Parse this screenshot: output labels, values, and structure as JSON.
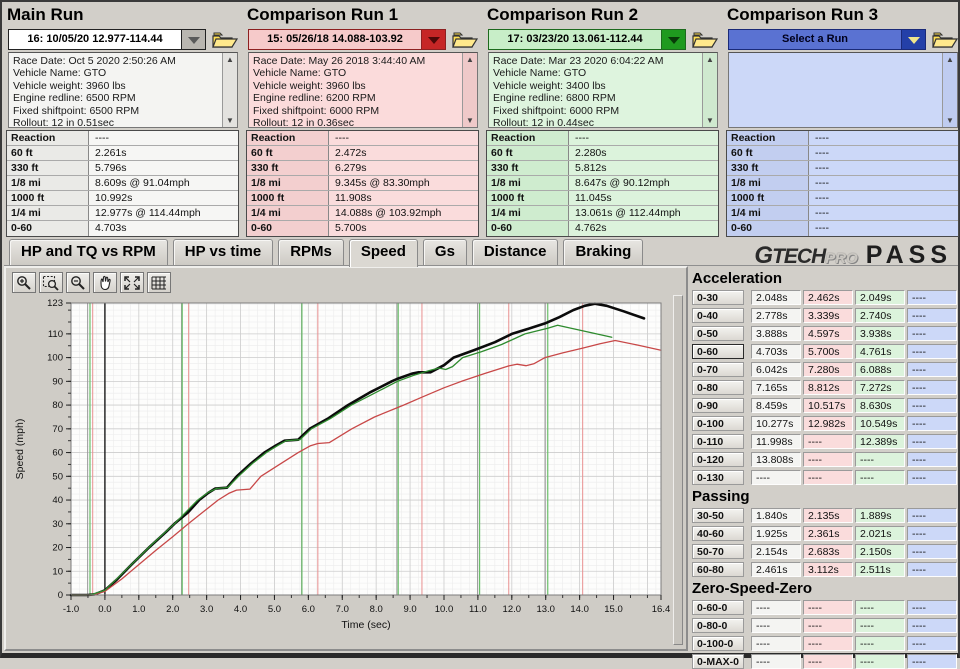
{
  "runs": [
    {
      "title": "Main Run",
      "selector": "16:   10/05/20 12.977-114.44",
      "info_lines": [
        "Race Date: Oct 5 2020  2:50:26 AM",
        "Vehicle Name: GTO",
        "Vehicle weight: 3960 lbs",
        "Engine redline: 6500 RPM",
        "Fixed shiftpoint: 6500 RPM",
        "Rollout: 12 in  0.51sec"
      ],
      "stats": [
        [
          "Reaction",
          "----"
        ],
        [
          "60 ft",
          "2.261s"
        ],
        [
          "330 ft",
          "5.796s"
        ],
        [
          "1/8 mi",
          "8.609s @ 91.04mph"
        ],
        [
          "1000 ft",
          "10.992s"
        ],
        [
          "1/4 mi",
          "12.977s @ 114.44mph"
        ],
        [
          "0-60",
          "4.703s"
        ]
      ],
      "theme": {
        "sel_bg": "#ffffff",
        "sel_text": "#000000",
        "sel_border": "#222222",
        "arrow_bg": "#b9b6b0",
        "arrow_tri": "#5a5a5a",
        "box_bg": "#f4f4f2",
        "sb_bg": "#e3e2df",
        "cell_bg": "#f6f6f4",
        "label_bg": "#eaeae7"
      }
    },
    {
      "title": "Comparison Run 1",
      "selector": "15:   05/26/18 14.088-103.92",
      "info_lines": [
        "Race Date: May 26 2018  3:44:40 AM",
        "Vehicle Name: GTO",
        "Vehicle weight: 3960 lbs",
        "Engine redline: 6200 RPM",
        "Fixed shiftpoint: 6000 RPM",
        "Rollout: 12 in  0.36sec"
      ],
      "stats": [
        [
          "Reaction",
          "----"
        ],
        [
          "60 ft",
          "2.472s"
        ],
        [
          "330 ft",
          "6.279s"
        ],
        [
          "1/8 mi",
          "9.345s @ 83.30mph"
        ],
        [
          "1000 ft",
          "11.908s"
        ],
        [
          "1/4 mi",
          "14.088s @ 103.92mph"
        ],
        [
          "0-60",
          "5.700s"
        ]
      ],
      "theme": {
        "sel_bg": "#f6caca",
        "sel_text": "#000000",
        "sel_border": "#8d2020",
        "arrow_bg": "#c62626",
        "arrow_tri": "#4f0808",
        "box_bg": "#fbdbdb",
        "sb_bg": "#efc9c9",
        "cell_bg": "#fadcdc",
        "label_bg": "#f3cfcf"
      }
    },
    {
      "title": "Comparison Run 2",
      "selector": "17:   03/23/20 13.061-112.44",
      "info_lines": [
        "Race Date: Mar 23 2020  6:04:22 AM",
        "Vehicle Name: GTO",
        "Vehicle weight: 3400 lbs",
        "Engine redline: 6800 RPM",
        "Fixed shiftpoint: 6000 RPM",
        "Rollout: 12 in  0.44sec"
      ],
      "stats": [
        [
          "Reaction",
          "----"
        ],
        [
          "60 ft",
          "2.280s"
        ],
        [
          "330 ft",
          "5.812s"
        ],
        [
          "1/8 mi",
          "8.647s @ 90.12mph"
        ],
        [
          "1000 ft",
          "11.045s"
        ],
        [
          "1/4 mi",
          "13.061s @ 112.44mph"
        ],
        [
          "0-60",
          "4.762s"
        ]
      ],
      "theme": {
        "sel_bg": "#c8eec8",
        "sel_text": "#000000",
        "sel_border": "#1d6a1d",
        "arrow_bg": "#1f9a1f",
        "arrow_tri": "#083a08",
        "box_bg": "#def4de",
        "sb_bg": "#cfe9cf",
        "cell_bg": "#dcf3dc",
        "label_bg": "#cfeccf"
      }
    },
    {
      "title": "Comparison Run 3",
      "selector": "Select a Run",
      "info_lines": [],
      "stats": [
        [
          "Reaction",
          "----"
        ],
        [
          "60 ft",
          "----"
        ],
        [
          "330 ft",
          "----"
        ],
        [
          "1/8 mi",
          "----"
        ],
        [
          "1000 ft",
          "----"
        ],
        [
          "1/4 mi",
          "----"
        ],
        [
          "0-60",
          "----"
        ]
      ],
      "theme": {
        "sel_bg": "#5a72d2",
        "sel_text": "#00001c",
        "sel_border": "#1a2a78",
        "arrow_bg": "#2440a8",
        "arrow_tri": "#f0e68c",
        "box_bg": "#ccd8f8",
        "sb_bg": "#bfccf0",
        "cell_bg": "#ccd8f8",
        "label_bg": "#c2cef0"
      }
    }
  ],
  "tabs": {
    "items": [
      "HP and TQ vs RPM",
      "HP vs time",
      "RPMs",
      "Speed",
      "Gs",
      "Distance",
      "Braking"
    ],
    "active": "Speed"
  },
  "logo": {
    "g": "G",
    "tech": "TECH",
    "pro": "PRO",
    "pass": "PASS"
  },
  "toolbar": {
    "buttons": [
      "zoom-in",
      "zoom-select",
      "zoom-out",
      "pan",
      "fit",
      "grid"
    ]
  },
  "chart_data": {
    "type": "line",
    "title": "",
    "xlabel": "Time (sec)",
    "ylabel": "Speed (mph)",
    "xlim": [
      -1.0,
      16.4
    ],
    "ylim": [
      0,
      123
    ],
    "x_ticks": [
      -1.0,
      0.0,
      1.0,
      2.0,
      3.0,
      4.0,
      5.0,
      6.0,
      7.0,
      8.0,
      9.0,
      10.0,
      11.0,
      12.0,
      13.0,
      14.0,
      15.0,
      16.4
    ],
    "y_ticks": [
      0,
      10,
      20,
      30,
      40,
      50,
      60,
      70,
      80,
      90,
      100,
      110,
      123
    ],
    "grid": true,
    "legend": "none",
    "series": [
      {
        "name": "Main Run",
        "color": "#0b0b0b",
        "width": 2.6,
        "points": [
          [
            -1,
            0
          ],
          [
            -0.5,
            0
          ],
          [
            -0.3,
            0.3
          ],
          [
            0,
            2
          ],
          [
            0.35,
            6.5
          ],
          [
            0.8,
            13
          ],
          [
            1.3,
            20
          ],
          [
            1.8,
            26.5
          ],
          [
            2.05,
            30
          ],
          [
            2.45,
            34.8
          ],
          [
            2.78,
            40
          ],
          [
            3.05,
            43
          ],
          [
            3.25,
            44.8
          ],
          [
            3.6,
            45.2
          ],
          [
            3.89,
            50
          ],
          [
            4.3,
            55.3
          ],
          [
            4.7,
            60
          ],
          [
            5.05,
            63
          ],
          [
            5.3,
            65
          ],
          [
            5.7,
            65.4
          ],
          [
            6.04,
            70
          ],
          [
            6.6,
            74.5
          ],
          [
            7.17,
            80
          ],
          [
            7.8,
            85.2
          ],
          [
            8.46,
            90
          ],
          [
            8.61,
            91
          ],
          [
            9.05,
            93.2
          ],
          [
            9.25,
            93.8
          ],
          [
            9.6,
            93.8
          ],
          [
            10,
            96.8
          ],
          [
            10.28,
            100
          ],
          [
            10.9,
            103.2
          ],
          [
            11.5,
            106.5
          ],
          [
            12,
            110
          ],
          [
            12.5,
            112.2
          ],
          [
            12.98,
            114.4
          ],
          [
            13.4,
            117
          ],
          [
            13.81,
            120
          ],
          [
            14.15,
            121.8
          ],
          [
            14.45,
            122.7
          ],
          [
            14.8,
            121.8
          ],
          [
            15.3,
            119.5
          ],
          [
            15.9,
            116.5
          ]
        ]
      },
      {
        "name": "Comparison Run 1",
        "color": "#c84848",
        "width": 1.3,
        "points": [
          [
            -1,
            0
          ],
          [
            -0.36,
            0
          ],
          [
            0,
            1.5
          ],
          [
            0.5,
            6.8
          ],
          [
            1,
            12.8
          ],
          [
            1.5,
            18.8
          ],
          [
            2,
            24.5
          ],
          [
            2.46,
            30
          ],
          [
            2.9,
            35
          ],
          [
            3.34,
            40
          ],
          [
            3.65,
            42.8
          ],
          [
            3.88,
            44.2
          ],
          [
            4.28,
            44.6
          ],
          [
            4.6,
            50
          ],
          [
            5.15,
            55
          ],
          [
            5.7,
            60
          ],
          [
            6.05,
            62.8
          ],
          [
            6.28,
            63.8
          ],
          [
            6.62,
            64.2
          ],
          [
            7.28,
            70
          ],
          [
            7.95,
            75
          ],
          [
            8.81,
            80
          ],
          [
            9.35,
            83.3
          ],
          [
            10,
            87.3
          ],
          [
            10.52,
            90
          ],
          [
            11.2,
            93.3
          ],
          [
            11.91,
            96.5
          ],
          [
            12.15,
            97.2
          ],
          [
            12.42,
            96.6
          ],
          [
            12.65,
            97.4
          ],
          [
            12.98,
            100
          ],
          [
            13.5,
            102
          ],
          [
            14.09,
            104
          ],
          [
            14.6,
            105.8
          ],
          [
            15.05,
            107.2
          ],
          [
            15.7,
            105.3
          ],
          [
            16.4,
            103.1
          ]
        ]
      },
      {
        "name": "Comparison Run 2",
        "color": "#2e8b2e",
        "width": 1.3,
        "points": [
          [
            -1,
            0
          ],
          [
            -0.44,
            0
          ],
          [
            0,
            2
          ],
          [
            0.4,
            7.5
          ],
          [
            0.9,
            14.5
          ],
          [
            1.4,
            21.5
          ],
          [
            2.05,
            30
          ],
          [
            2.74,
            40
          ],
          [
            3.05,
            43.2
          ],
          [
            3.3,
            44.9
          ],
          [
            3.62,
            45.3
          ],
          [
            3.94,
            50
          ],
          [
            4.35,
            55.4
          ],
          [
            4.76,
            60
          ],
          [
            5.1,
            63
          ],
          [
            5.35,
            65
          ],
          [
            5.75,
            65.4
          ],
          [
            6.09,
            70
          ],
          [
            6.65,
            74.3
          ],
          [
            7.27,
            80
          ],
          [
            7.95,
            85
          ],
          [
            8.63,
            90
          ],
          [
            9.1,
            92.5
          ],
          [
            9.55,
            94.5
          ],
          [
            9.85,
            95.6
          ],
          [
            10.05,
            95
          ],
          [
            10.25,
            96.2
          ],
          [
            10.55,
            100
          ],
          [
            11.1,
            102.5
          ],
          [
            11.7,
            105.5
          ],
          [
            12.39,
            110
          ],
          [
            13.06,
            112.4
          ],
          [
            13.35,
            113.6
          ],
          [
            13.8,
            112.2
          ],
          [
            14.4,
            110.3
          ],
          [
            14.95,
            108.6
          ]
        ]
      }
    ],
    "vlines": [
      {
        "x": 0,
        "color": "#1a1a1a",
        "w": 1.4
      },
      {
        "x": -0.51,
        "color": "#9a9a9a",
        "w": 1
      },
      {
        "x": 2.26,
        "color": "#9a9a9a",
        "w": 1
      },
      {
        "x": 5.8,
        "color": "#9a9a9a",
        "w": 1
      },
      {
        "x": 8.61,
        "color": "#9a9a9a",
        "w": 1
      },
      {
        "x": 10.99,
        "color": "#9a9a9a",
        "w": 1
      },
      {
        "x": 12.98,
        "color": "#9a9a9a",
        "w": 1
      },
      {
        "x": -0.44,
        "color": "#6abf6a",
        "w": 1.2
      },
      {
        "x": 2.28,
        "color": "#6abf6a",
        "w": 1.2
      },
      {
        "x": 5.81,
        "color": "#6abf6a",
        "w": 1.2
      },
      {
        "x": 8.65,
        "color": "#6abf6a",
        "w": 1.2
      },
      {
        "x": 11.05,
        "color": "#6abf6a",
        "w": 1.2
      },
      {
        "x": 13.06,
        "color": "#6abf6a",
        "w": 1.2
      },
      {
        "x": -0.36,
        "color": "#e89090",
        "w": 1
      },
      {
        "x": 2.47,
        "color": "#e89090",
        "w": 1
      },
      {
        "x": 6.28,
        "color": "#e89090",
        "w": 1
      },
      {
        "x": 9.35,
        "color": "#e89090",
        "w": 1
      },
      {
        "x": 11.91,
        "color": "#e89090",
        "w": 1
      },
      {
        "x": 14.09,
        "color": "#e89090",
        "w": 1
      }
    ]
  },
  "metrics": {
    "column_colors": [
      "#f4f4f2",
      "#fadcdc",
      "#dcf3dc",
      "#ccd8f8"
    ],
    "sections": [
      {
        "title": "Acceleration",
        "selected_label": "0-60",
        "rows": [
          {
            "label": "0-30",
            "values": [
              "2.048s",
              "2.462s",
              "2.049s",
              "----"
            ]
          },
          {
            "label": "0-40",
            "values": [
              "2.778s",
              "3.339s",
              "2.740s",
              "----"
            ]
          },
          {
            "label": "0-50",
            "values": [
              "3.888s",
              "4.597s",
              "3.938s",
              "----"
            ]
          },
          {
            "label": "0-60",
            "values": [
              "4.703s",
              "5.700s",
              "4.761s",
              "----"
            ]
          },
          {
            "label": "0-70",
            "values": [
              "6.042s",
              "7.280s",
              "6.088s",
              "----"
            ]
          },
          {
            "label": "0-80",
            "values": [
              "7.165s",
              "8.812s",
              "7.272s",
              "----"
            ]
          },
          {
            "label": "0-90",
            "values": [
              "8.459s",
              "10.517s",
              "8.630s",
              "----"
            ]
          },
          {
            "label": "0-100",
            "values": [
              "10.277s",
              "12.982s",
              "10.549s",
              "----"
            ]
          },
          {
            "label": "0-110",
            "values": [
              "11.998s",
              "----",
              "12.389s",
              "----"
            ]
          },
          {
            "label": "0-120",
            "values": [
              "13.808s",
              "----",
              "----",
              "----"
            ]
          },
          {
            "label": "0-130",
            "values": [
              "----",
              "----",
              "----",
              "----"
            ]
          }
        ]
      },
      {
        "title": "Passing",
        "selected_label": "",
        "rows": [
          {
            "label": "30-50",
            "values": [
              "1.840s",
              "2.135s",
              "1.889s",
              "----"
            ]
          },
          {
            "label": "40-60",
            "values": [
              "1.925s",
              "2.361s",
              "2.021s",
              "----"
            ]
          },
          {
            "label": "50-70",
            "values": [
              "2.154s",
              "2.683s",
              "2.150s",
              "----"
            ]
          },
          {
            "label": "60-80",
            "values": [
              "2.461s",
              "3.112s",
              "2.511s",
              "----"
            ]
          }
        ]
      },
      {
        "title": "Zero-Speed-Zero",
        "selected_label": "",
        "rows": [
          {
            "label": "0-60-0",
            "values": [
              "----",
              "----",
              "----",
              "----"
            ]
          },
          {
            "label": "0-80-0",
            "values": [
              "----",
              "----",
              "----",
              "----"
            ]
          },
          {
            "label": "0-100-0",
            "values": [
              "----",
              "----",
              "----",
              "----"
            ]
          },
          {
            "label": "0-MAX-0",
            "values": [
              "----",
              "----",
              "----",
              "----"
            ]
          }
        ]
      }
    ]
  }
}
